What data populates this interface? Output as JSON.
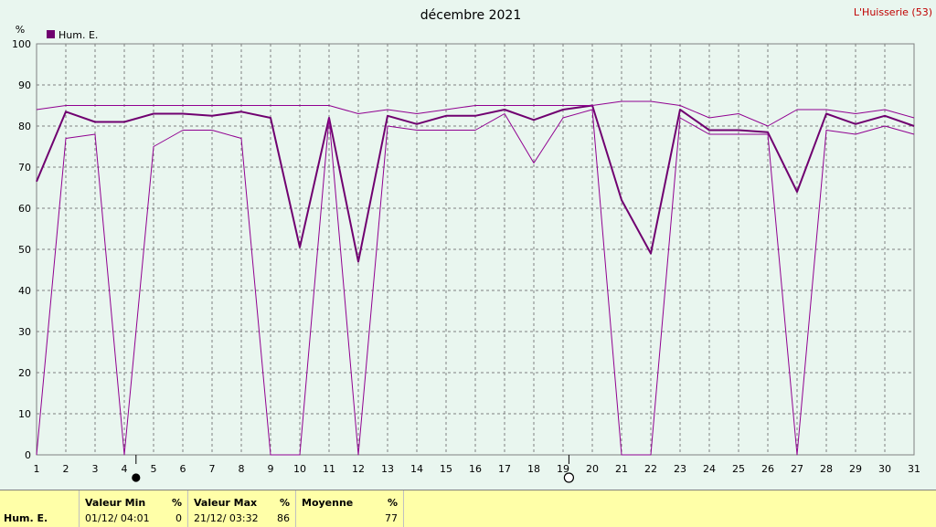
{
  "chart_data": {
    "type": "line",
    "title": "décembre 2021",
    "station": "L'Huisserie (53)",
    "ylabel": "%",
    "ylim": [
      0,
      100
    ],
    "yticks": [
      0,
      10,
      20,
      30,
      40,
      50,
      60,
      70,
      80,
      90,
      100
    ],
    "x": [
      1,
      2,
      3,
      4,
      5,
      6,
      7,
      8,
      9,
      10,
      11,
      12,
      13,
      14,
      15,
      16,
      17,
      18,
      19,
      20,
      21,
      22,
      23,
      24,
      25,
      26,
      27,
      28,
      29,
      30,
      31
    ],
    "xlim": [
      1,
      31
    ],
    "grid": true,
    "legend": "top-left",
    "series": [
      {
        "name": "Hum. E.",
        "role": "mean",
        "color": "#700070",
        "values": [
          66.5,
          83.5,
          81,
          81,
          83,
          83,
          82.5,
          83.5,
          82,
          50.5,
          82,
          47,
          82.5,
          80.5,
          82.5,
          82.5,
          84,
          81.5,
          84,
          85,
          62,
          49,
          84,
          79,
          79,
          78.5,
          64,
          83,
          80.5,
          82.5,
          80
        ]
      },
      {
        "role": "max",
        "color": "#900090",
        "values": [
          84,
          85,
          85,
          85,
          85,
          85,
          85,
          85,
          85,
          85,
          85,
          83,
          84,
          83,
          84,
          85,
          85,
          85,
          85,
          85,
          86,
          86,
          85,
          82,
          83,
          80,
          84,
          84,
          83,
          84,
          82
        ]
      },
      {
        "role": "min",
        "color": "#900090",
        "values": [
          0,
          77,
          78,
          0,
          75,
          79,
          79,
          77,
          0,
          0,
          82,
          0,
          80,
          79,
          79,
          79,
          83,
          71,
          82,
          84,
          0,
          0,
          82,
          78,
          78,
          78,
          0,
          79,
          78,
          80,
          78
        ]
      }
    ],
    "moon_phases": [
      {
        "day": 4.4,
        "phase": "new-moon-icon"
      },
      {
        "day": 19.2,
        "phase": "full-moon-icon"
      }
    ]
  },
  "stats": {
    "series_label": "Hum. E.",
    "min_header": "Valeur Min",
    "max_header": "Valeur Max",
    "mean_header": "Moyenne",
    "unit": "%",
    "min_date": "01/12/  04:01",
    "min_value": "0",
    "max_date": "21/12/  03:32",
    "max_value": "86",
    "mean_value": "77"
  }
}
